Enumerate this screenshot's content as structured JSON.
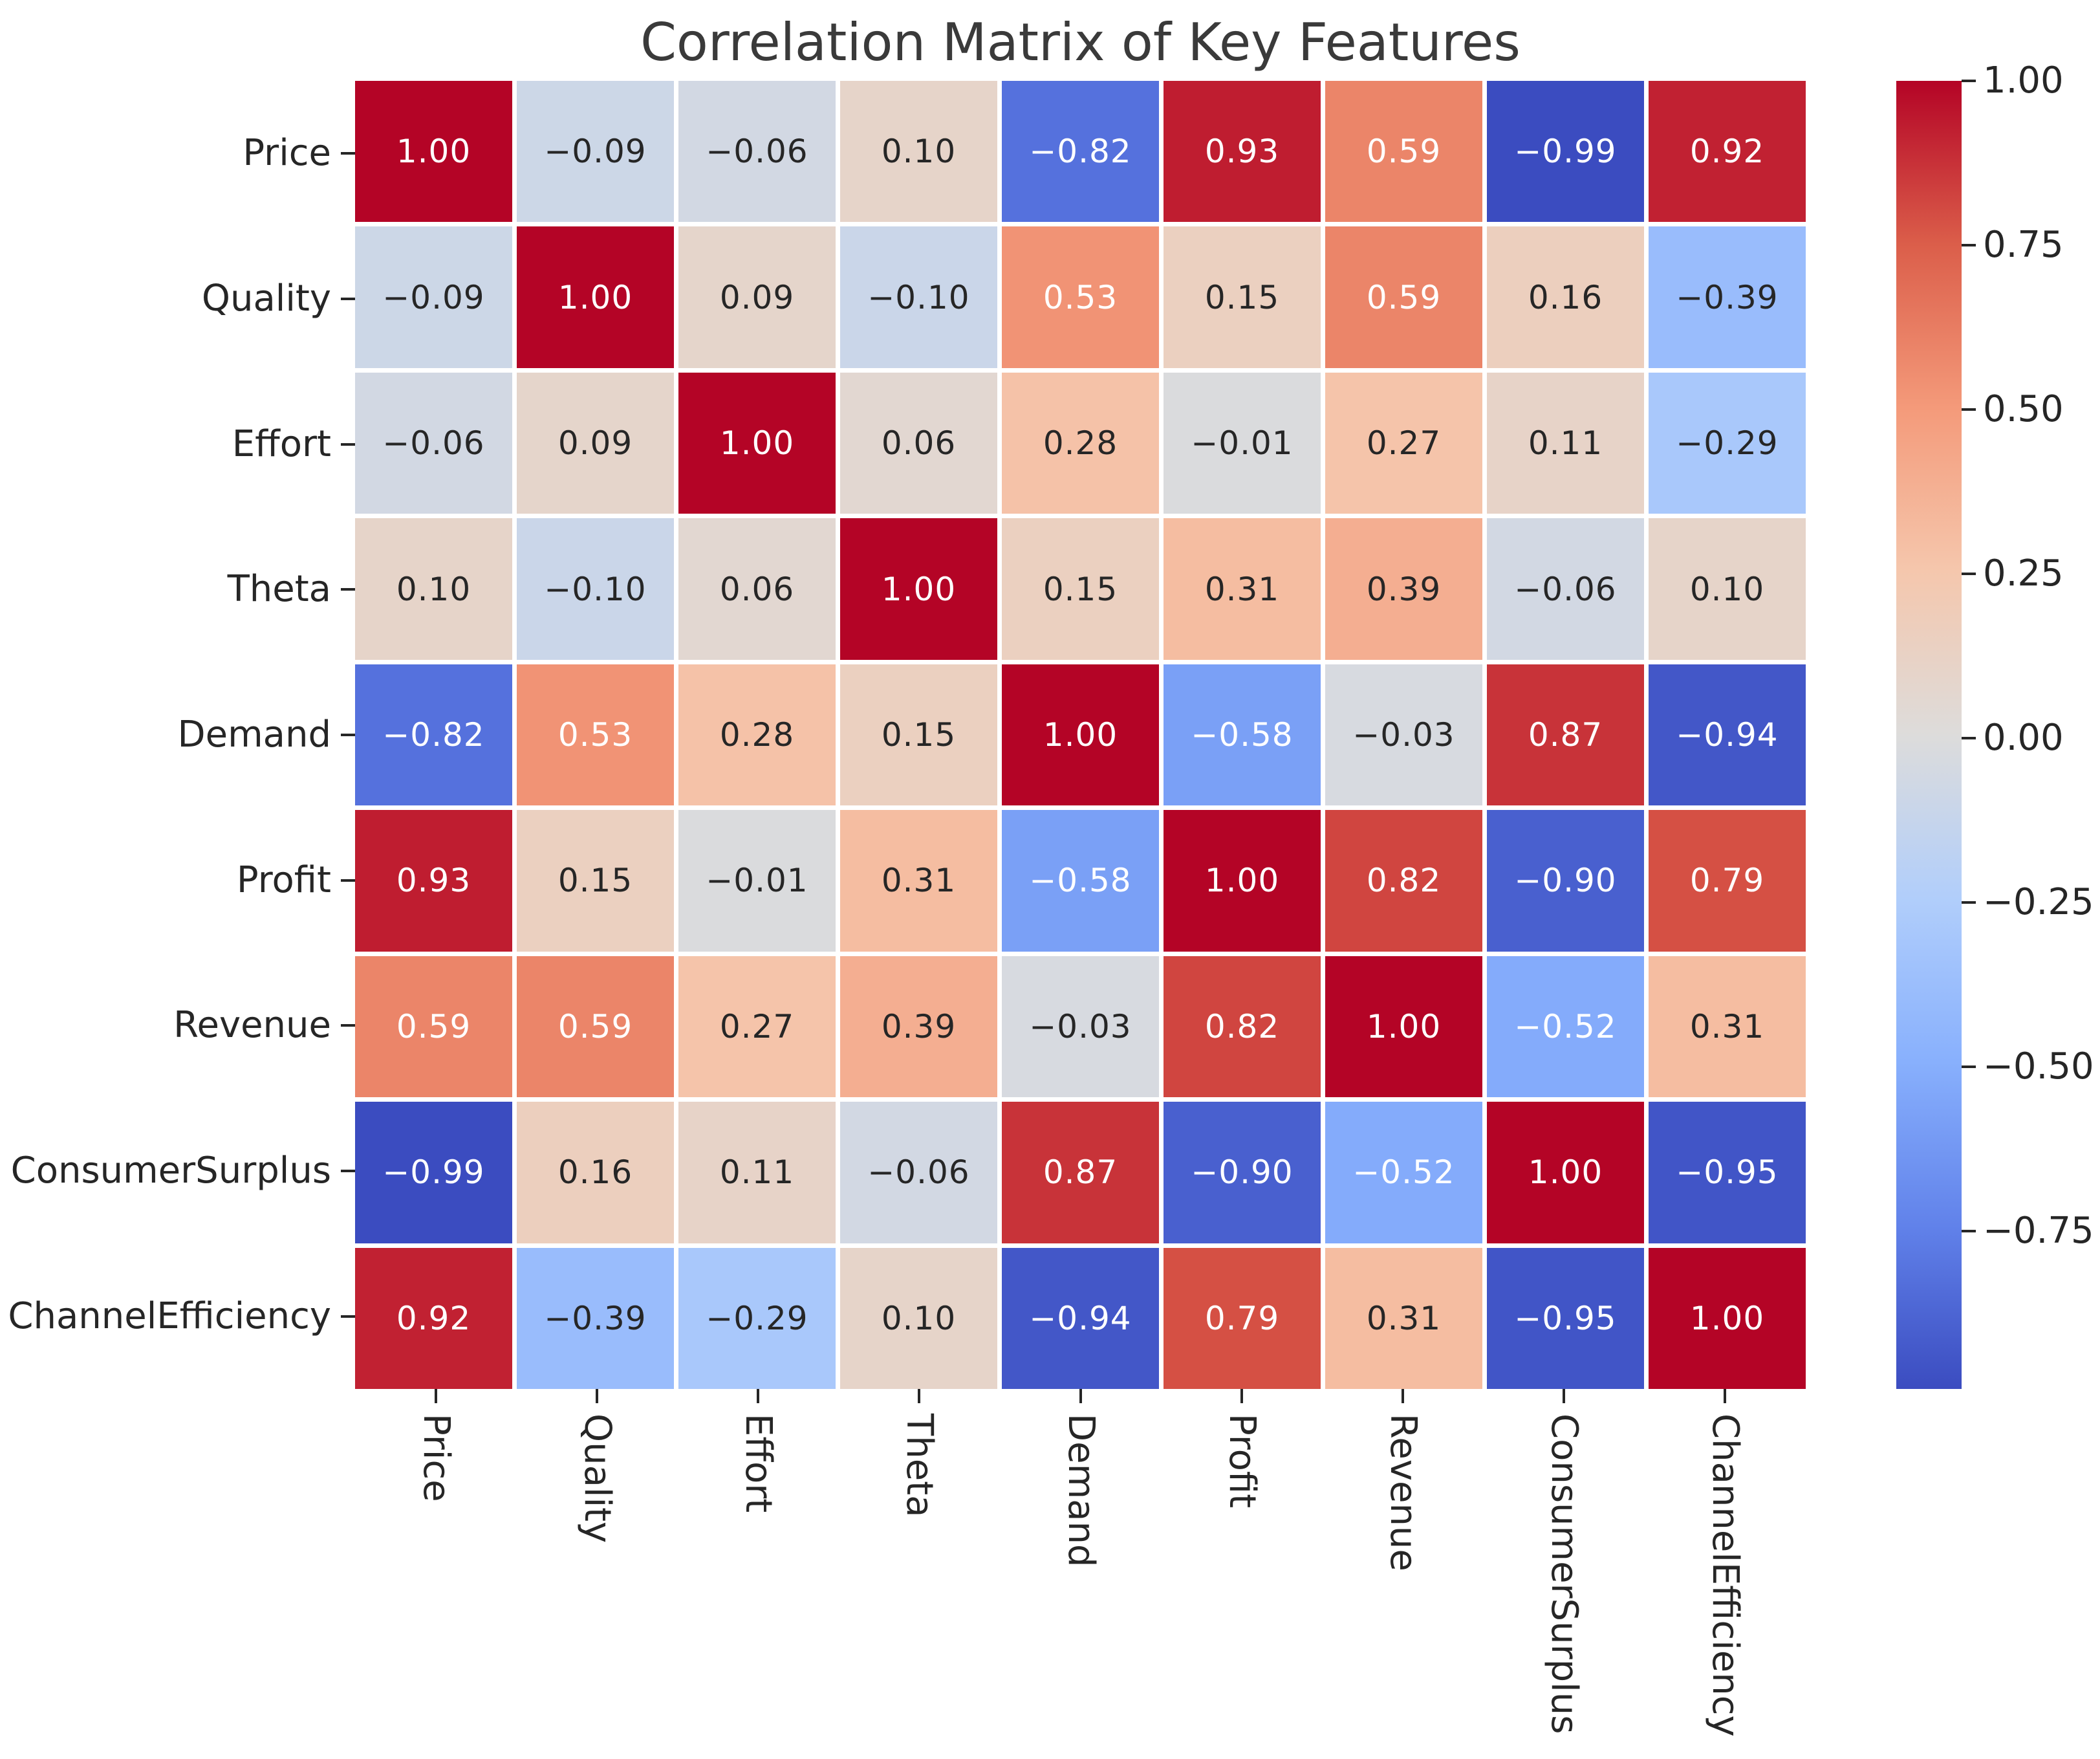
{
  "title": "Correlation Matrix of Key Features",
  "colors": {
    "annotation_light": "#ffffff",
    "annotation_dark": "#262626",
    "axis_text": "#262626",
    "tick_marks": "#262626",
    "title_text": "#3a3a3a",
    "grid_lines": "#ffffff"
  },
  "chart_data": {
    "type": "heatmap",
    "title": "Correlation Matrix of Key Features",
    "categories": [
      "Price",
      "Quality",
      "Effort",
      "Theta",
      "Demand",
      "Profit",
      "Revenue",
      "ConsumerSurplus",
      "ChannelEfficiency"
    ],
    "matrix": [
      [
        1.0,
        -0.09,
        -0.06,
        0.1,
        -0.82,
        0.93,
        0.59,
        -0.99,
        0.92
      ],
      [
        -0.09,
        1.0,
        0.09,
        -0.1,
        0.53,
        0.15,
        0.59,
        0.16,
        -0.39
      ],
      [
        -0.06,
        0.09,
        1.0,
        0.06,
        0.28,
        -0.01,
        0.27,
        0.11,
        -0.29
      ],
      [
        0.1,
        -0.1,
        0.06,
        1.0,
        0.15,
        0.31,
        0.39,
        -0.06,
        0.1
      ],
      [
        -0.82,
        0.53,
        0.28,
        0.15,
        1.0,
        -0.58,
        -0.03,
        0.87,
        -0.94
      ],
      [
        0.93,
        0.15,
        -0.01,
        0.31,
        -0.58,
        1.0,
        0.82,
        -0.9,
        0.79
      ],
      [
        0.59,
        0.59,
        0.27,
        0.39,
        -0.03,
        0.82,
        1.0,
        -0.52,
        0.31
      ],
      [
        -0.99,
        0.16,
        0.11,
        -0.06,
        0.87,
        -0.9,
        -0.52,
        1.0,
        -0.95
      ],
      [
        0.92,
        -0.39,
        -0.29,
        0.1,
        -0.94,
        0.79,
        0.31,
        -0.95,
        1.0
      ]
    ],
    "colormap": {
      "name": "coolwarm",
      "vmin": -0.99,
      "vmax": 1.0,
      "anchors": [
        {
          "t": 0.0,
          "rgb": [
            59,
            76,
            192
          ]
        },
        {
          "t": 0.125,
          "rgb": [
            97,
            130,
            234
          ]
        },
        {
          "t": 0.25,
          "rgb": [
            136,
            176,
            253
          ]
        },
        {
          "t": 0.375,
          "rgb": [
            177,
            206,
            251
          ]
        },
        {
          "t": 0.5,
          "rgb": [
            221,
            220,
            219
          ]
        },
        {
          "t": 0.625,
          "rgb": [
            245,
            199,
            173
          ]
        },
        {
          "t": 0.75,
          "rgb": [
            244,
            154,
            122
          ]
        },
        {
          "t": 0.875,
          "rgb": [
            219,
            94,
            74
          ]
        },
        {
          "t": 1.0,
          "rgb": [
            180,
            4,
            38
          ]
        }
      ]
    },
    "annotation_white_threshold_abs": 0.45,
    "colorbar_ticks": [
      1.0,
      0.75,
      0.5,
      0.25,
      0.0,
      -0.25,
      -0.5,
      -0.75
    ],
    "legend_position": "right",
    "grid": "white cell separators",
    "x_tick_rotation_deg": 90
  }
}
